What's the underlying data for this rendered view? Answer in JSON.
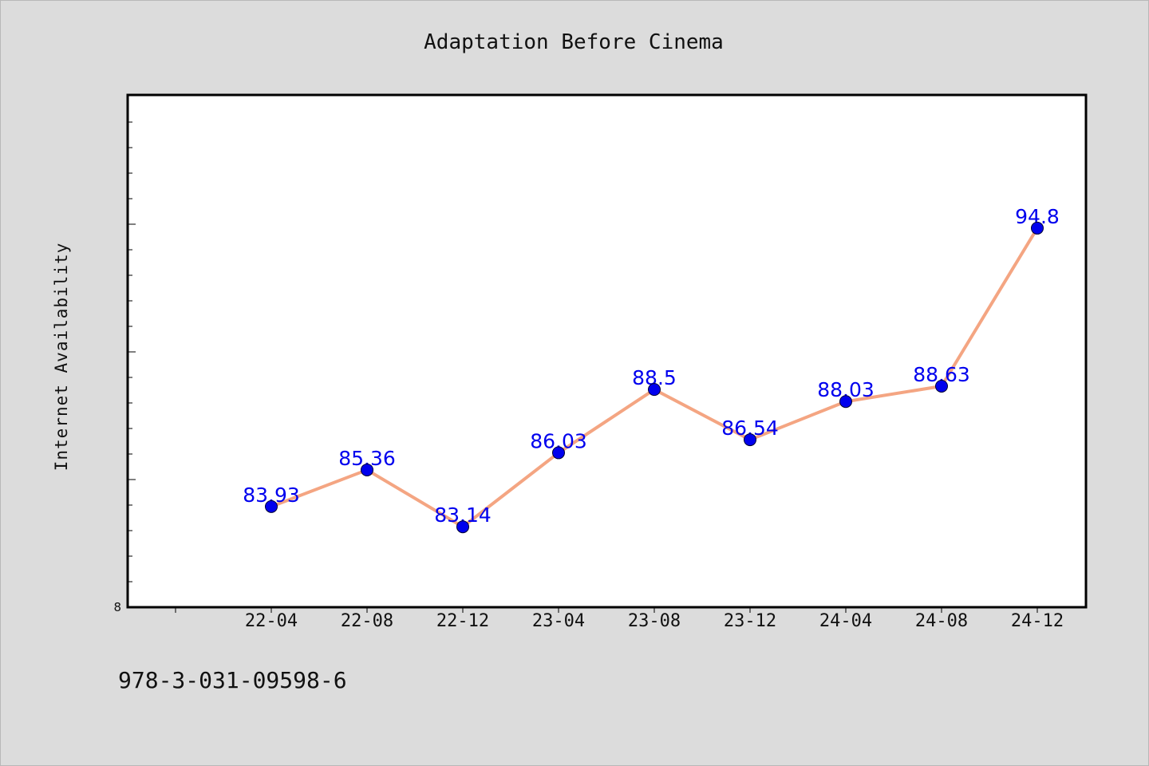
{
  "chart_data": {
    "type": "line",
    "title": "Adaptation Before Cinema",
    "xlabel": "",
    "ylabel": "Internet Availability",
    "categories": [
      "22-04",
      "22-08",
      "22-12",
      "23-04",
      "23-08",
      "23-12",
      "24-04",
      "24-08",
      "24-12"
    ],
    "series": [
      {
        "values": [
          83.93,
          85.36,
          83.14,
          86.03,
          88.5,
          86.54,
          88.03,
          88.63,
          94.8
        ],
        "labels": [
          "83.93",
          "85.36",
          "83.14",
          "86.03",
          "88.5",
          "86.54",
          "88.03",
          "88.63",
          "94.8"
        ],
        "line_color": "#f4a582",
        "marker_color": "#0000ee",
        "label_color": "#0000ee"
      }
    ],
    "y_tick_labels": [
      "8"
    ],
    "ylim": [
      80,
      100
    ],
    "grid": false,
    "legend": "none"
  },
  "footnote": "978-3-031-09598-6"
}
